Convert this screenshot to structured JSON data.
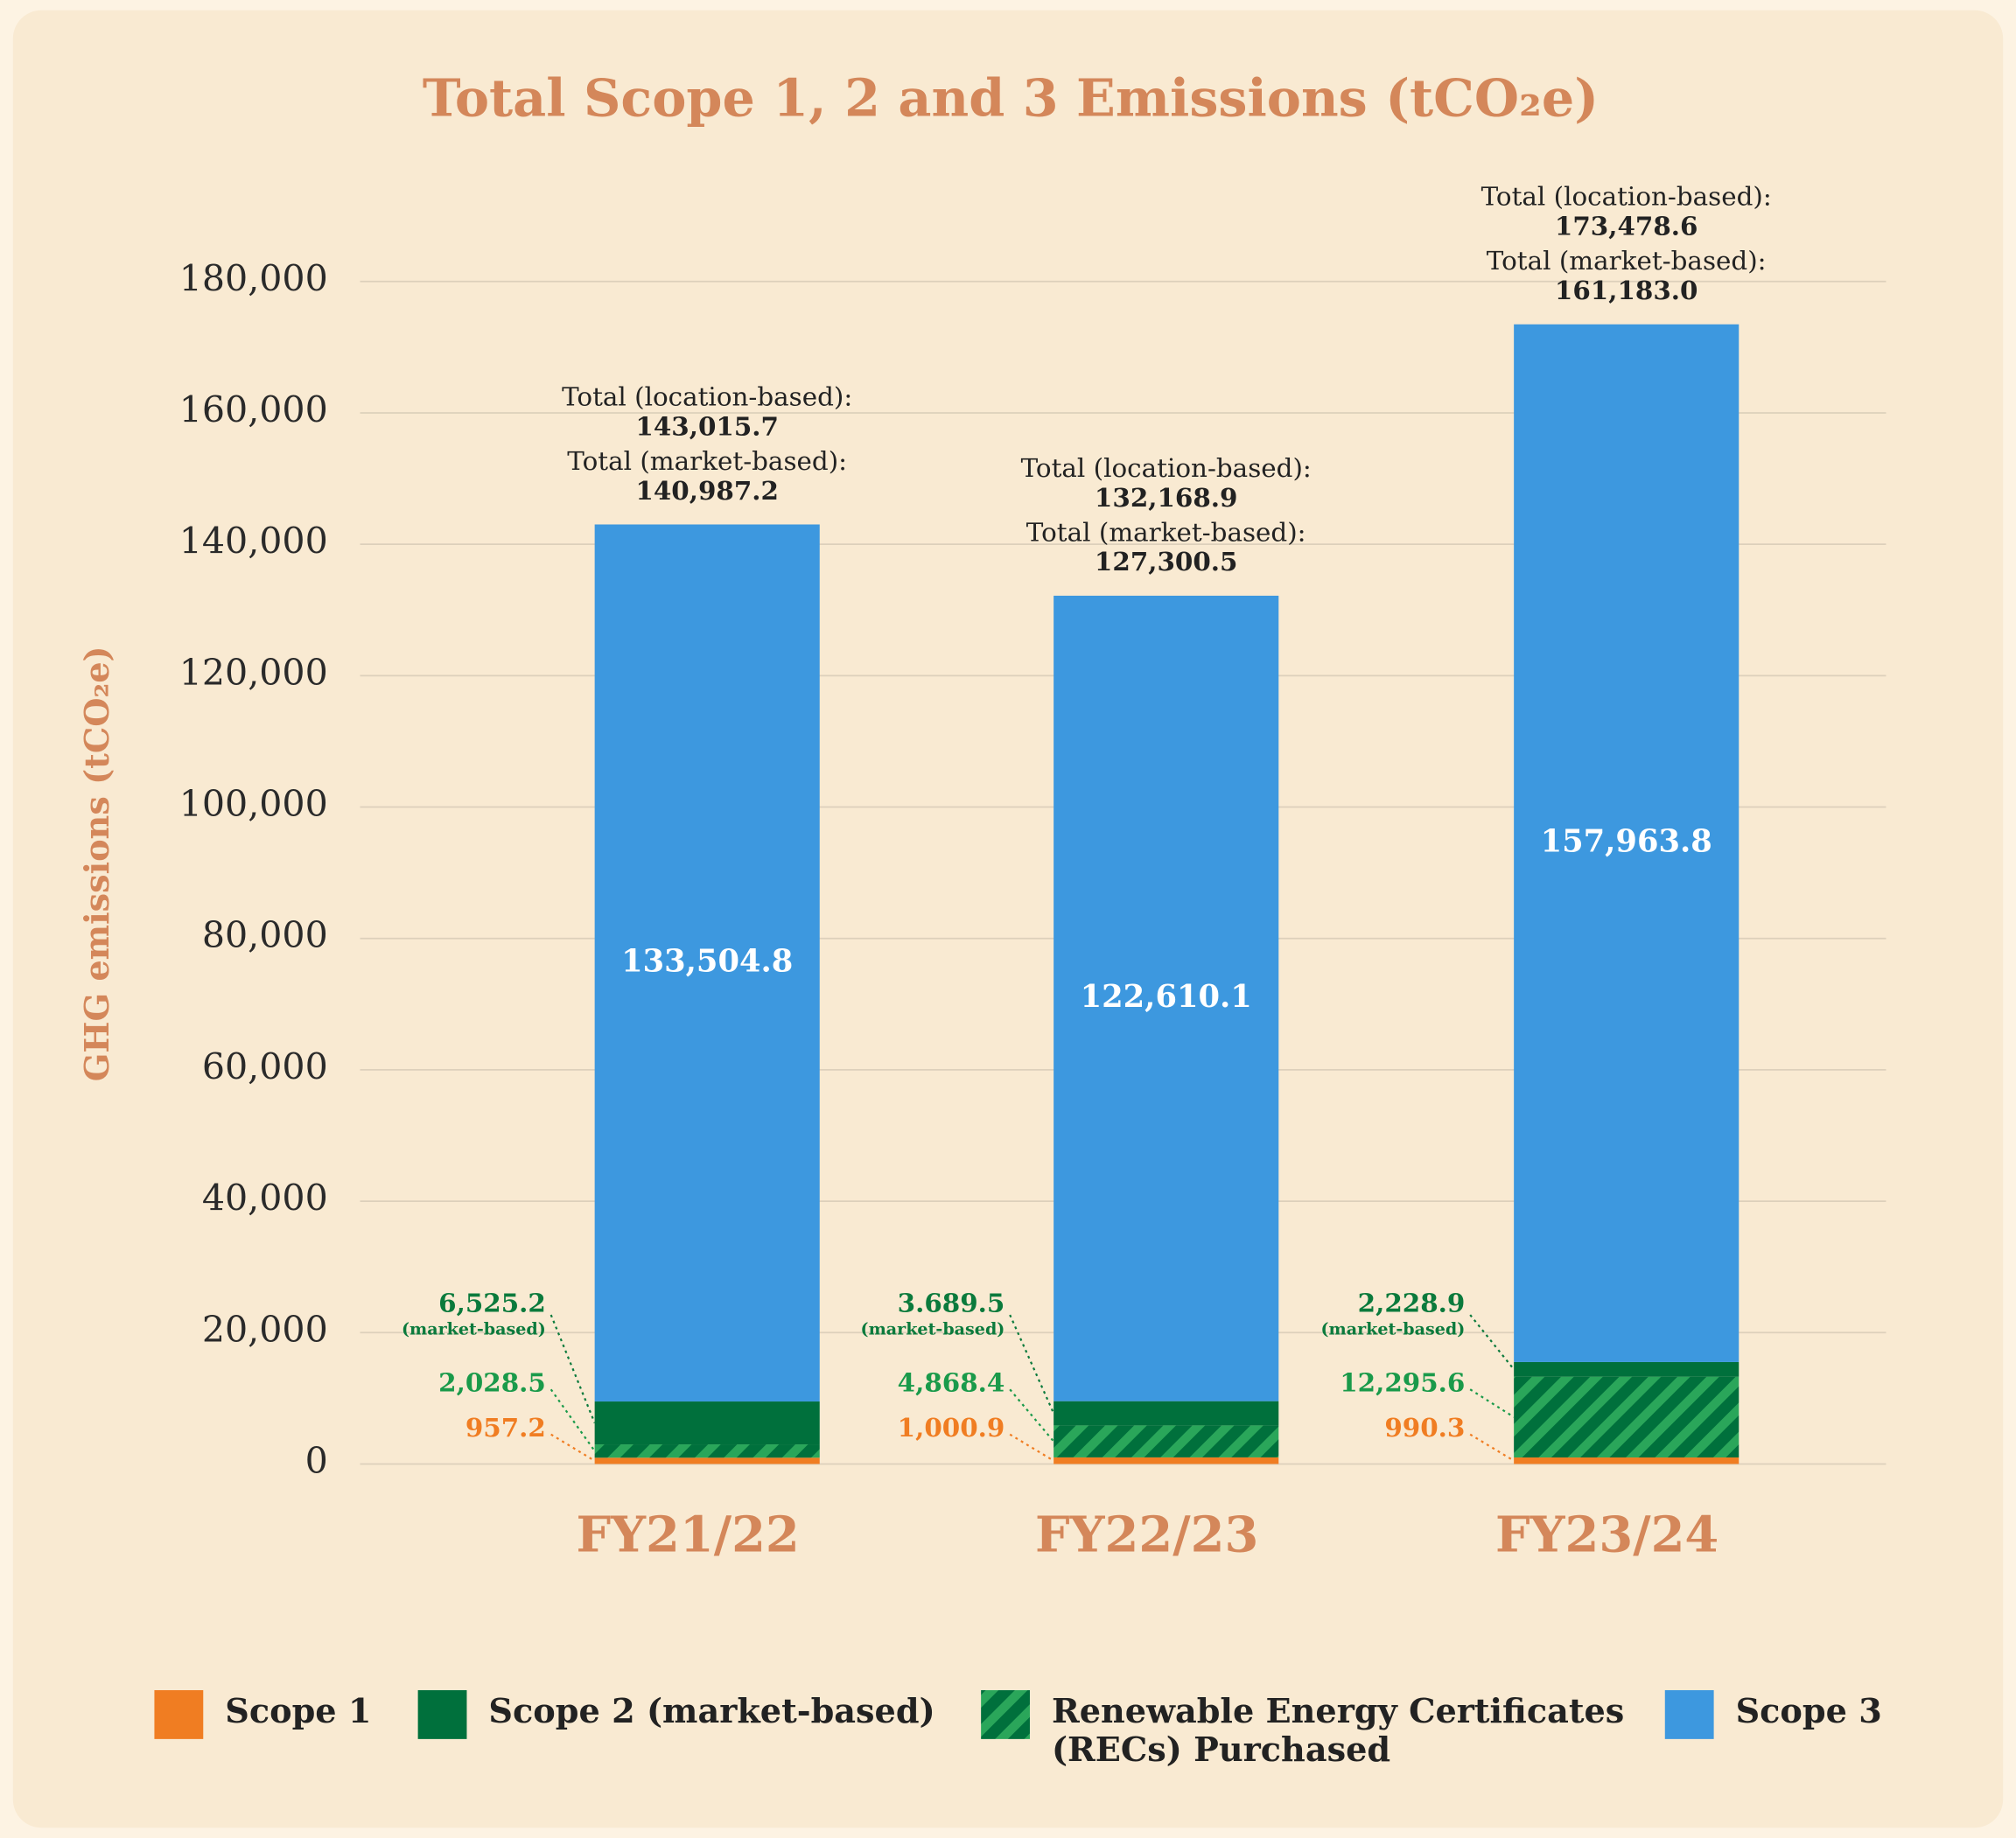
{
  "chart_data": {
    "type": "stacked_bar",
    "title": "Total Scope 1, 2 and 3 Emissions (tCO₂e)",
    "y_label": "GHG emissions (tCO₂e)",
    "categories": [
      "FY21/22",
      "FY22/23",
      "FY23/24"
    ],
    "series": [
      {
        "name": "Scope 1",
        "color": "#f07d22",
        "label_color": "#f07d22",
        "values": [
          957.2,
          1000.9,
          990.3
        ],
        "value_labels": [
          "957.2",
          "1,000.9",
          "990.3"
        ]
      },
      {
        "name": "Renewable Energy Certificates (RECs) Purchased",
        "color": "#00703c",
        "hatch_color": "#2aa65a",
        "label_color": "#1a9a4a",
        "values": [
          2028.5,
          4868.4,
          12295.6
        ],
        "value_labels": [
          "2,028.5",
          "4,868.4",
          "12,295.6"
        ]
      },
      {
        "name": "Scope 2 (market-based)",
        "color": "#00703c",
        "label_color": "#0b7a3c",
        "note": "(market-based)",
        "values": [
          6525.2,
          3689.5,
          2228.9
        ],
        "value_labels": [
          "6,525.2",
          "3.689.5",
          "2,228.9"
        ]
      },
      {
        "name": "Scope 3",
        "color": "#3d98df",
        "label_color": "#ffffff",
        "values": [
          133504.8,
          122610.1,
          157963.8
        ],
        "value_labels": [
          "133,504.8",
          "122,610.1",
          "157,963.8"
        ]
      }
    ],
    "totals": {
      "location_label": "Total (location-based):",
      "market_label": "Total (market-based):",
      "location": [
        "143,015.7",
        "132,168.9",
        "173,478.6"
      ],
      "market": [
        "140,987.2",
        "127,300.5",
        "161,183.0"
      ]
    },
    "ylim": [
      0,
      180000
    ],
    "yticks": [
      0,
      {
        "value": 20000,
        "label": "20,000"
      },
      {
        "value": 40000,
        "label": "40,000"
      },
      {
        "value": 60000,
        "label": "60,000"
      },
      {
        "value": 80000,
        "label": "80,000"
      },
      {
        "value": 100000,
        "label": "100,000"
      },
      {
        "value": 120000,
        "label": "120,000"
      },
      {
        "value": 140000,
        "label": "140,000"
      },
      {
        "value": 160000,
        "label": "160,000"
      },
      {
        "value": 180000,
        "label": "180,000"
      }
    ],
    "grid": true,
    "legend": "bottom"
  }
}
